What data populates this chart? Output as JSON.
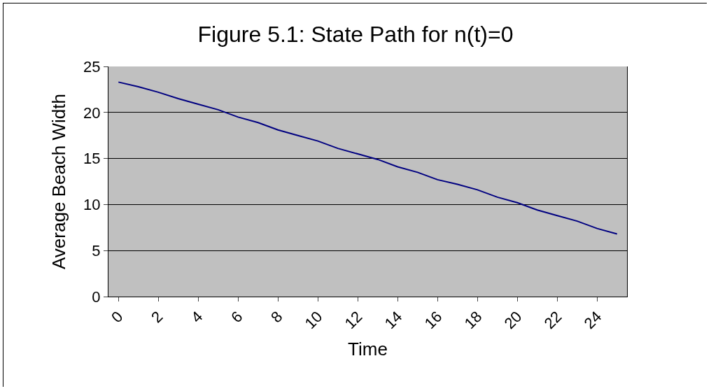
{
  "chart_data": {
    "type": "line",
    "title": "Figure 5.1: State Path for n(t)=0",
    "xlabel": "Time",
    "ylabel": "Average Beach Width",
    "x": [
      0,
      1,
      2,
      3,
      4,
      5,
      6,
      7,
      8,
      9,
      10,
      11,
      12,
      13,
      14,
      15,
      16,
      17,
      18,
      19,
      20,
      21,
      22,
      23,
      24,
      25
    ],
    "series": [
      {
        "color": "#000080",
        "values": [
          23.3,
          22.8,
          22.2,
          21.5,
          20.9,
          20.3,
          19.5,
          18.9,
          18.1,
          17.5,
          16.9,
          16.1,
          15.5,
          14.9,
          14.1,
          13.5,
          12.7,
          12.2,
          11.6,
          10.8,
          10.2,
          9.4,
          8.8,
          8.2,
          7.4,
          6.8
        ]
      }
    ],
    "xlim": [
      -0.5,
      25.5
    ],
    "xticks": [
      0,
      2,
      4,
      6,
      8,
      10,
      12,
      14,
      16,
      18,
      20,
      22,
      24
    ],
    "ylim": [
      0,
      25
    ],
    "yticks": [
      0,
      5,
      10,
      15,
      20,
      25
    ],
    "grid": "y",
    "marker": "none",
    "line_style": "solid"
  }
}
